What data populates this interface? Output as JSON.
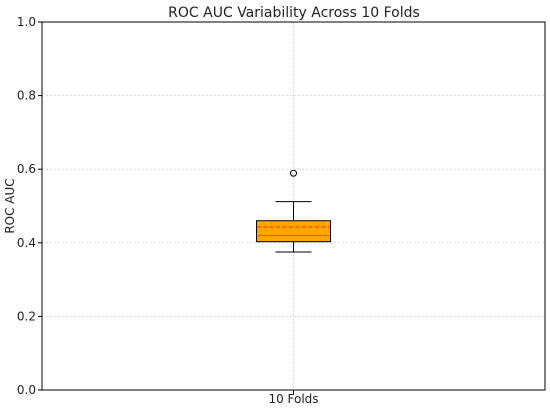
{
  "chart_data": {
    "type": "box",
    "title": "ROC AUC Variability Across 10 Folds",
    "xlabel": "",
    "ylabel": "ROC AUC",
    "ylim": [
      0.0,
      1.0
    ],
    "yticks": [
      "0.0",
      "0.2",
      "0.4",
      "0.6",
      "0.8",
      "1.0"
    ],
    "ytick_values": [
      0.0,
      0.2,
      0.4,
      0.6,
      0.8,
      1.0
    ],
    "categories": [
      "10 Folds"
    ],
    "grid": true,
    "boxes": [
      {
        "category": "10 Folds",
        "whisker_low": 0.375,
        "q1": 0.403,
        "median": 0.42,
        "mean": 0.443,
        "q3": 0.46,
        "whisker_high": 0.512,
        "outliers": [
          0.589
        ]
      }
    ],
    "colors": {
      "box_fill": "#ffa500",
      "median_line": "#d46a00",
      "mean_line": "#ff2200",
      "whiskers": "#000000"
    }
  }
}
